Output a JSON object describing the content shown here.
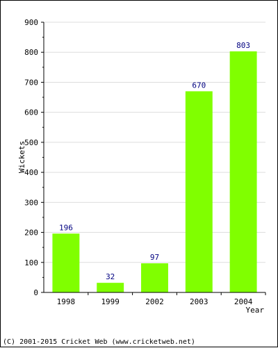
{
  "chart_data": {
    "type": "bar",
    "categories": [
      "1998",
      "1999",
      "2002",
      "2003",
      "2004"
    ],
    "values": [
      196,
      32,
      97,
      670,
      803
    ],
    "title": "",
    "xlabel": "Year",
    "ylabel": "Wickets",
    "ylim": [
      0,
      900
    ],
    "yticks": [
      0,
      100,
      200,
      300,
      400,
      500,
      600,
      700,
      800,
      900
    ],
    "grid": true,
    "data_labels": true,
    "bar_color": "#80ff00",
    "label_color": "#000080",
    "grid_color": "#dddddd"
  },
  "footer": {
    "copyright": "(C) 2001-2015 Cricket Web (www.cricketweb.net)"
  }
}
